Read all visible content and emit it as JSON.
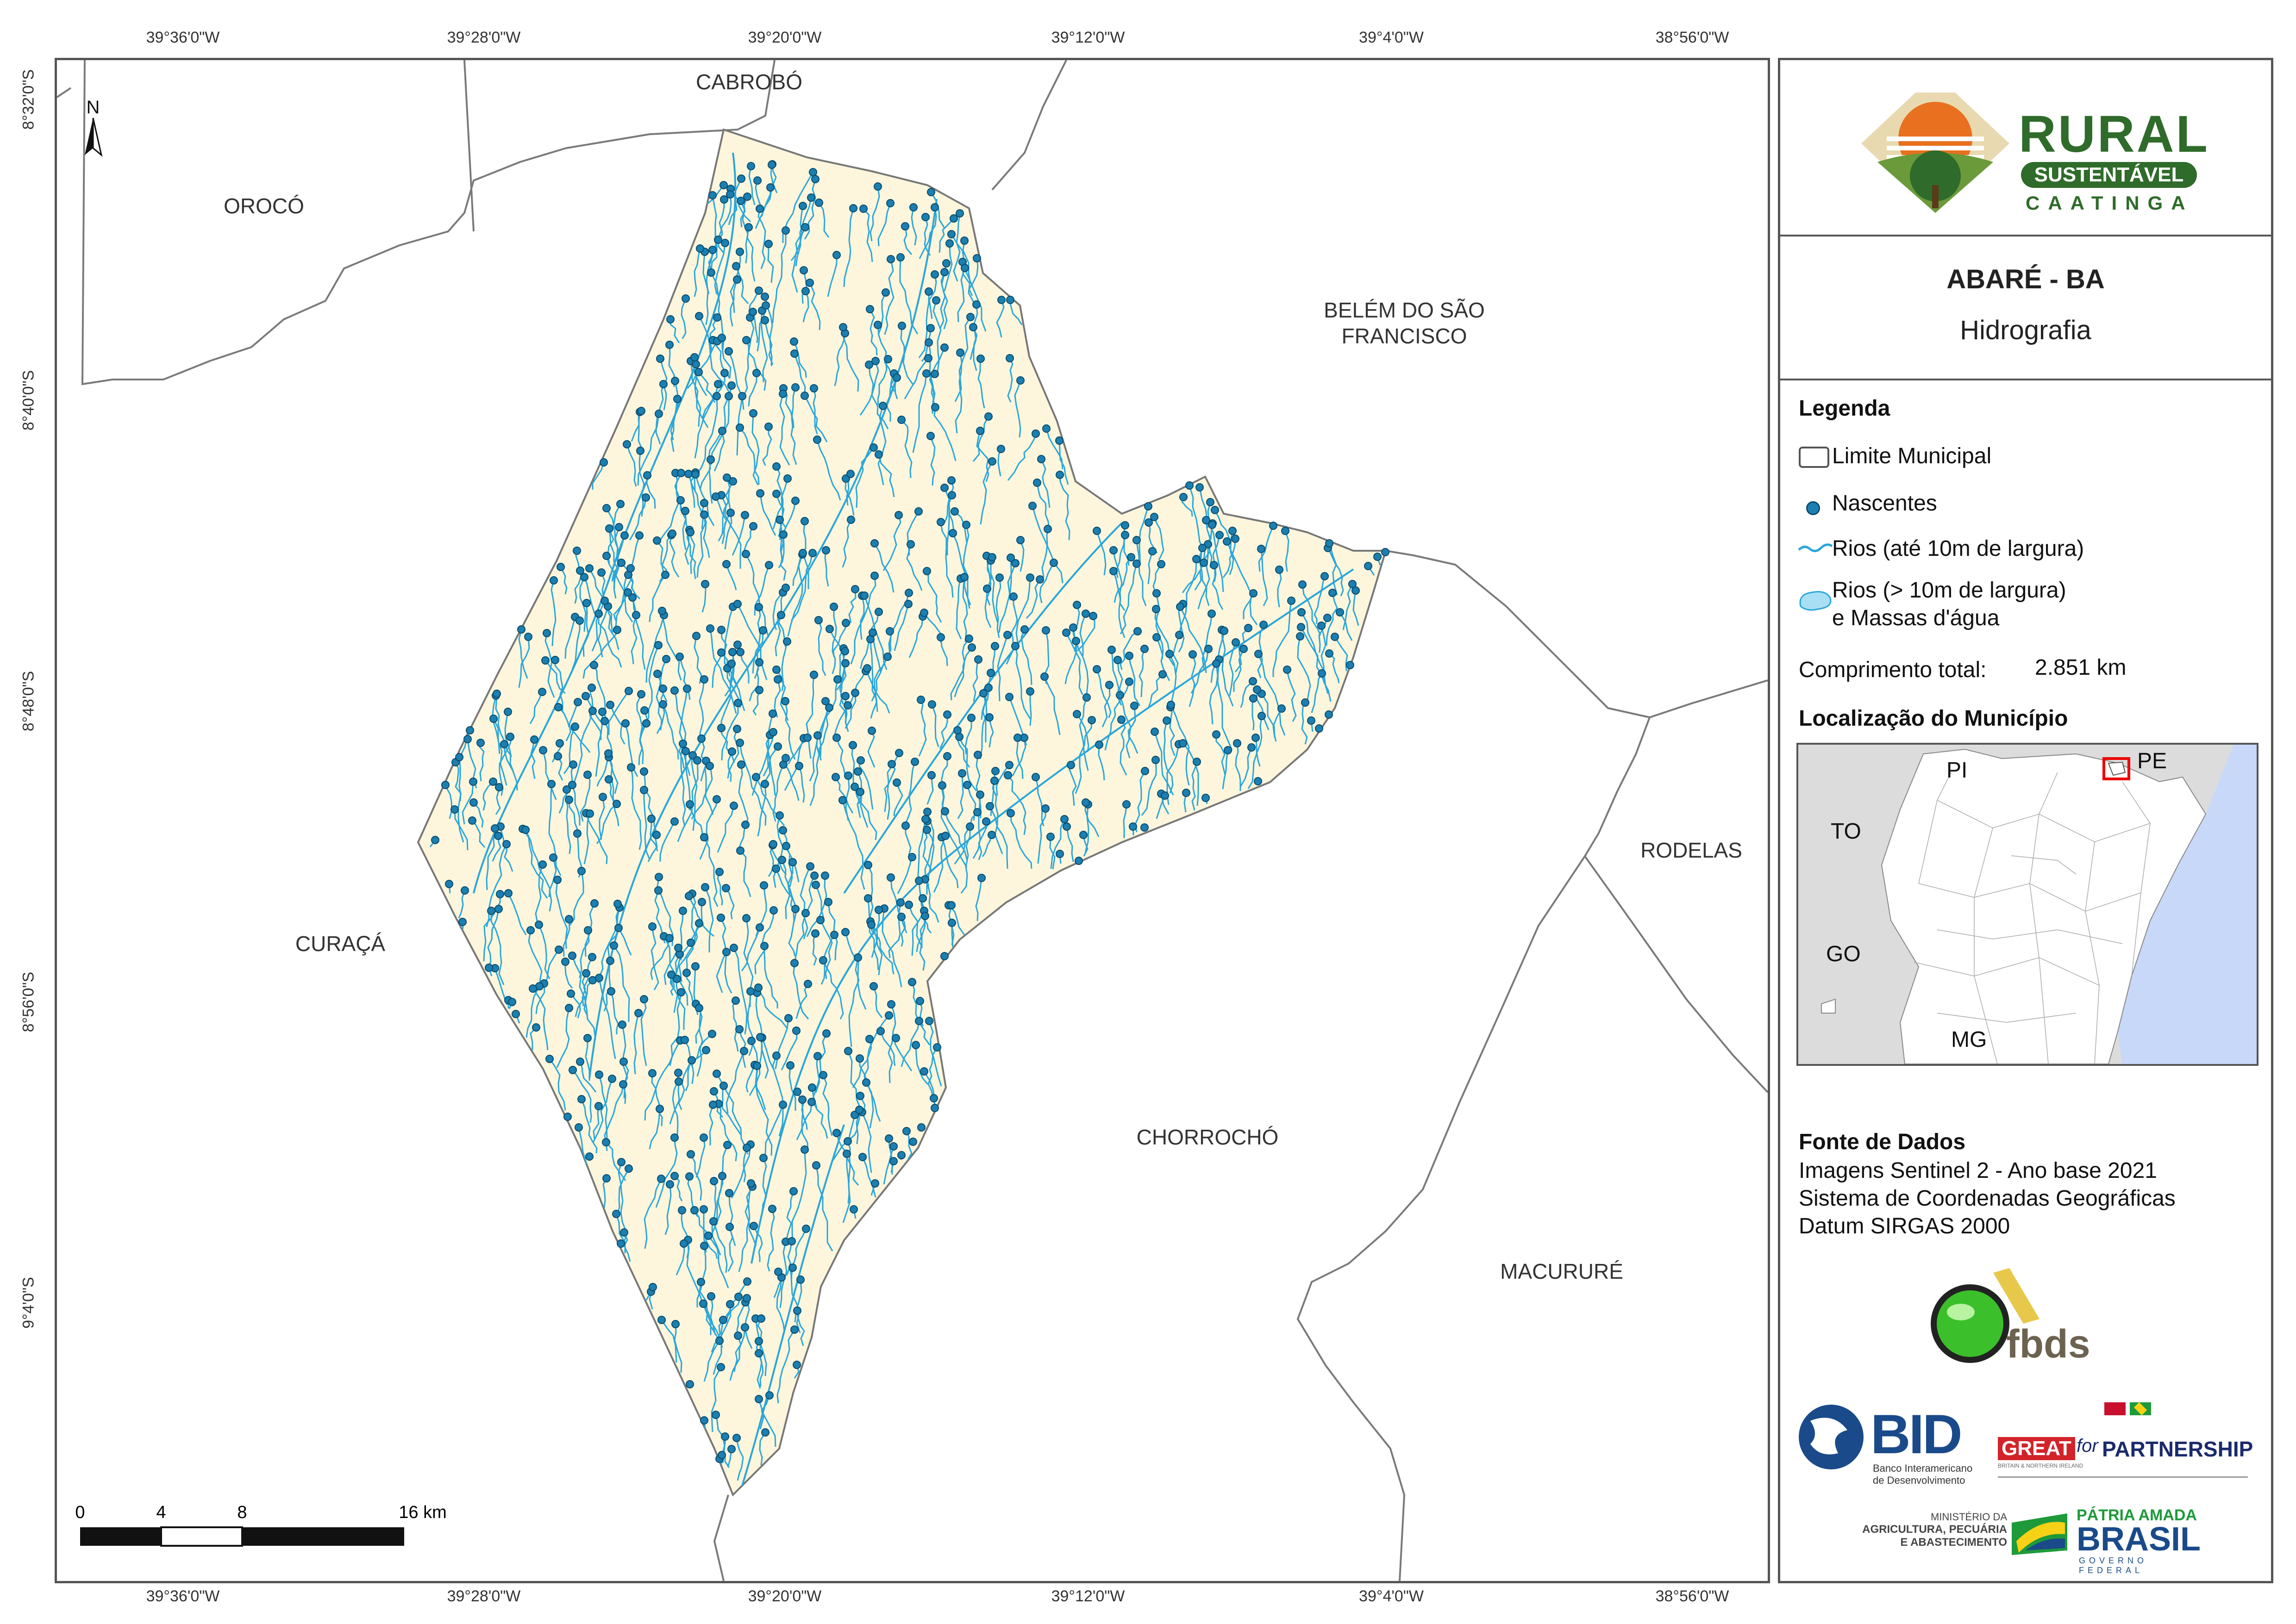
{
  "coordinates": {
    "longitude_labels": [
      "39°36'0\"W",
      "39°28'0\"W",
      "39°20'0\"W",
      "39°12'0\"W",
      "39°4'0\"W",
      "38°56'0\"W"
    ],
    "latitude_labels": [
      "8°32'0\"S",
      "8°40'0\"S",
      "8°48'0\"S",
      "8°56'0\"S",
      "9°4'0\"S"
    ]
  },
  "map": {
    "north_label": "N",
    "municipalities": {
      "cabrobo": "CABROBÓ",
      "oroco": "OROCÓ",
      "belem": "BELÉM DO SÃO FRANCISCO",
      "rodelas": "RODELAS",
      "curaca": "CURAÇÁ",
      "chorrocho": "CHORROCHÓ",
      "macurure": "MACURURÉ"
    },
    "scale_labels": [
      "0",
      "4",
      "8",
      "16 km"
    ],
    "colors": {
      "municipality_fill": "#fdf6dd",
      "river": "#2aa6d9",
      "spring": "#1b7fb0",
      "outline": "#777777"
    }
  },
  "panel": {
    "logo": {
      "word1": "RURAL",
      "word2": "SUSTENTÁVEL",
      "word3": "CAATINGA"
    },
    "title": "ABARÉ - BA",
    "subtitle": "Hidrografia",
    "legend": {
      "heading": "Legenda",
      "items": {
        "limite": "Limite Municipal",
        "nascentes": "Nascentes",
        "rios_small": "Rios (até 10m de largura)",
        "rios_large_1": "Rios (> 10m de largura)",
        "rios_large_2": "e Massas d'água"
      },
      "length_label": "Comprimento total:",
      "length_value": "2.851 km"
    },
    "location": {
      "heading": "Localização do Município",
      "labels": {
        "pi": "PI",
        "pe": "PE",
        "to": "TO",
        "go": "GO",
        "mg": "MG"
      }
    },
    "sources": {
      "heading": "Fonte de Dados",
      "line1": "Imagens Sentinel 2 - Ano base 2021",
      "line2": "Sistema de Coordenadas Geográficas",
      "line3": "Datum SIRGAS 2000"
    },
    "logos": {
      "fbds": "fbds",
      "bid": "BID",
      "bid_sub1": "Banco Interamericano",
      "bid_sub2": "de Desenvolvimento",
      "great": "GREAT",
      "great_for": "for",
      "partnership": "PARTNERSHIP",
      "great_sub": "BRITAIN & NORTHERN IRELAND",
      "min1": "MINISTÉRIO DA",
      "min2": "AGRICULTURA, PECUÁRIA",
      "min3": "E ABASTECIMENTO",
      "patria": "PÁTRIA AMADA",
      "brasil": "BRASIL",
      "gov": "GOVERNO FEDERAL"
    }
  }
}
